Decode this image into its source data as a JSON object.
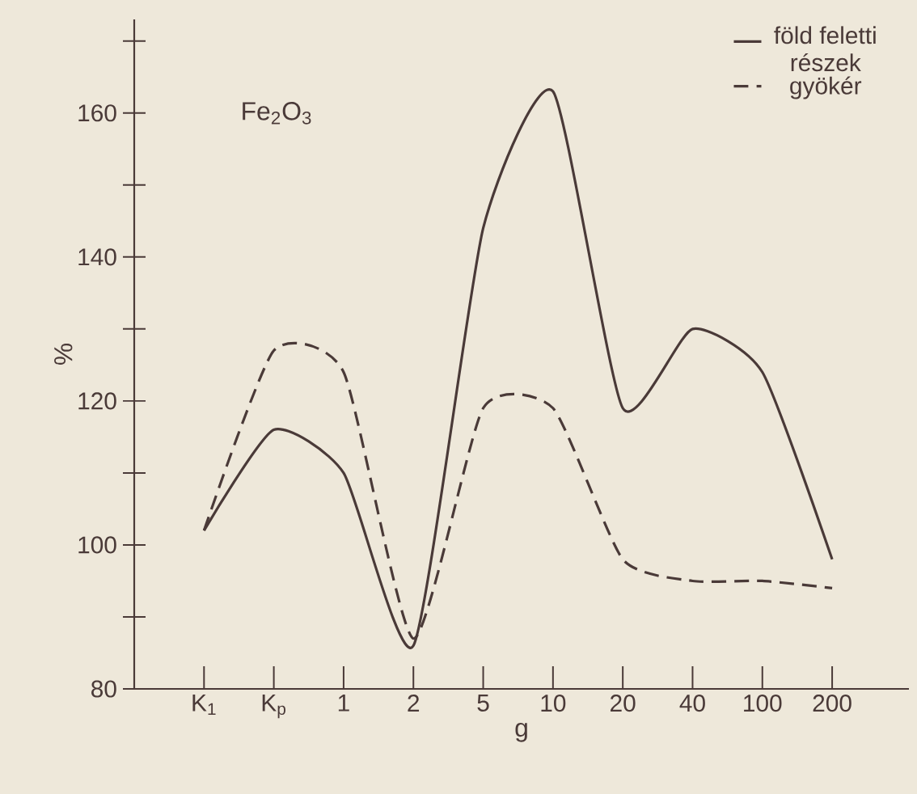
{
  "chart_data": {
    "type": "line",
    "xlabel": "g",
    "ylabel": "%",
    "categories": [
      "K$_{1}$",
      "K$_{p}$",
      "1",
      "2",
      "5",
      "10",
      "20",
      "40",
      "100",
      "200"
    ],
    "series": [
      {
        "name": "föld feletti részek",
        "color": "#4a3a38",
        "line_style": "solid",
        "values": [
          102,
          116,
          110,
          86,
          144,
          163,
          119,
          130,
          124,
          98
        ]
      },
      {
        "name": "gyökér",
        "color": "#4a3a38",
        "line_style": "dashed",
        "values": [
          102,
          127,
          124,
          87,
          119,
          119,
          98,
          95,
          95,
          94
        ]
      }
    ],
    "ylim": [
      80,
      173
    ],
    "yticks": [
      80,
      {
        "value": 90,
        "label": null
      },
      100,
      {
        "value": 110,
        "label": null
      },
      120,
      {
        "value": 130,
        "label": null
      },
      140,
      {
        "value": 150,
        "label": null
      },
      160,
      {
        "value": 170,
        "label": null
      }
    ],
    "annotations": [
      "Fe$_{2}$O$_{3}$"
    ],
    "legend": "top right",
    "grid": false,
    "marker": "none"
  }
}
